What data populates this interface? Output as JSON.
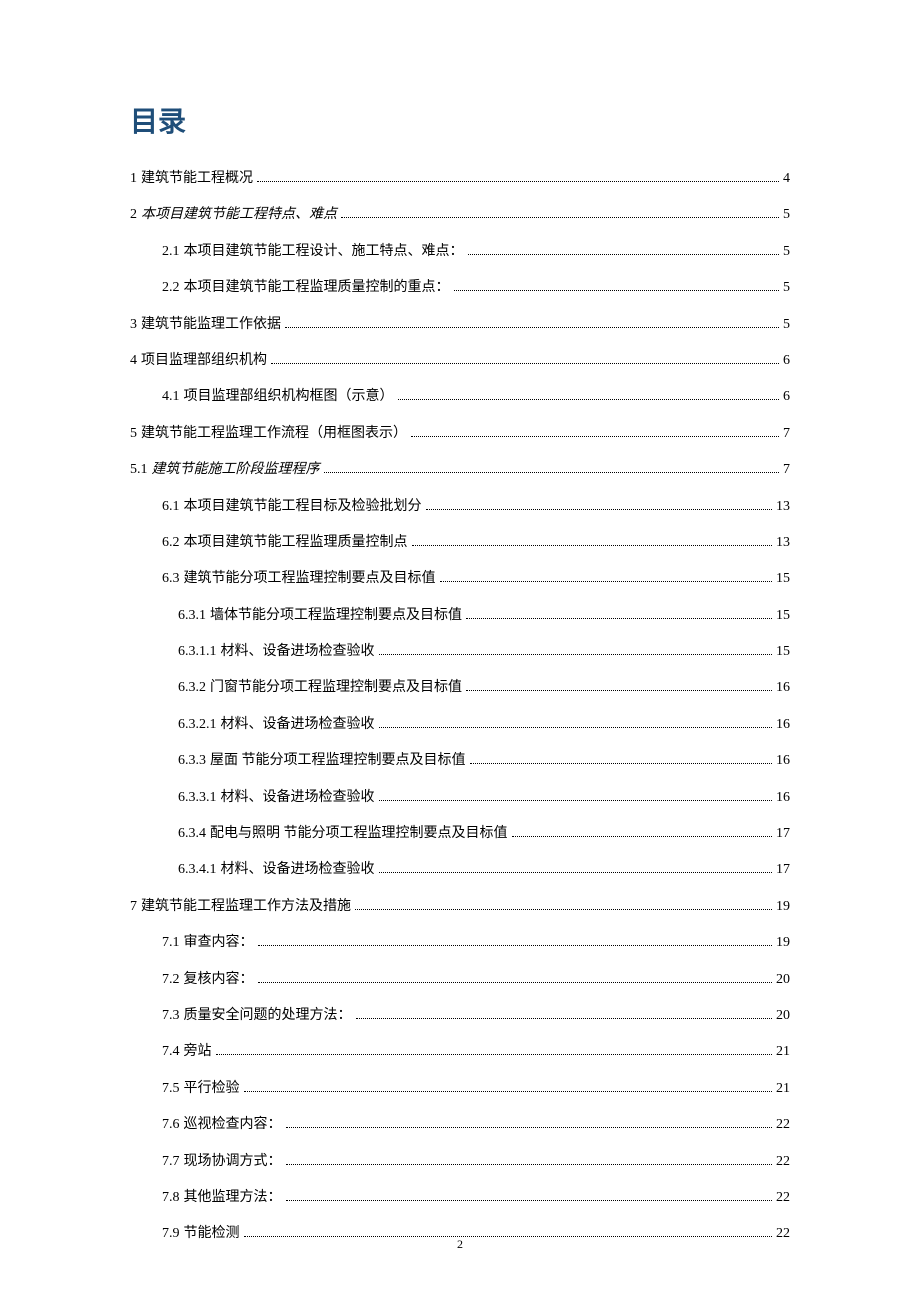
{
  "title": "目录",
  "title_color": "#1f4e79",
  "page_number": "2",
  "entries": [
    {
      "number": "1",
      "label": "建筑节能工程概况",
      "page": "4",
      "level": 0,
      "italic": false
    },
    {
      "number": "2",
      "label": "本项目建筑节能工程特点、难点",
      "page": "5",
      "level": 0,
      "italic": true
    },
    {
      "number": "2.1",
      "label": "本项目建筑节能工程设计、施工特点、难点：",
      "page": "5",
      "level": 1,
      "italic": false
    },
    {
      "number": "2.2",
      "label": "本项目建筑节能工程监理质量控制的重点：",
      "page": "5",
      "level": 1,
      "italic": false
    },
    {
      "number": "3",
      "label": "建筑节能监理工作依据",
      "page": "5",
      "level": 0,
      "italic": false
    },
    {
      "number": "4",
      "label": "项目监理部组织机构",
      "page": "6",
      "level": 0,
      "italic": false
    },
    {
      "number": "4.1",
      "label": "项目监理部组织机构框图（示意）",
      "page": "6",
      "level": 1,
      "italic": false
    },
    {
      "number": "5",
      "label": "建筑节能工程监理工作流程（用框图表示）",
      "page": "7",
      "level": 0,
      "italic": false
    },
    {
      "number": "5.1",
      "label": "建筑节能施工阶段监理程序",
      "page": "7",
      "level": 0,
      "italic": true
    },
    {
      "number": "6.1",
      "label": "本项目建筑节能工程目标及检验批划分",
      "page": "13",
      "level": 1,
      "italic": false
    },
    {
      "number": "6.2",
      "label": "本项目建筑节能工程监理质量控制点",
      "page": "13",
      "level": 1,
      "italic": false
    },
    {
      "number": "6.3",
      "label": "建筑节能分项工程监理控制要点及目标值",
      "page": "15",
      "level": 1,
      "italic": false
    },
    {
      "number": "6.3.1",
      "label": "墙体节能分项工程监理控制要点及目标值",
      "page": "15",
      "level": 2,
      "italic": false
    },
    {
      "number": "6.3.1.1",
      "label": "材料、设备进场检查验收",
      "page": "15",
      "level": 2,
      "italic": false
    },
    {
      "number": "6.3.2",
      "label": "门窗节能分项工程监理控制要点及目标值",
      "page": "16",
      "level": 2,
      "italic": false
    },
    {
      "number": "6.3.2.1",
      "label": "材料、设备进场检查验收",
      "page": "16",
      "level": 2,
      "italic": false
    },
    {
      "number": "6.3.3",
      "label": "屋面 节能分项工程监理控制要点及目标值",
      "page": "16",
      "level": 2,
      "italic": false
    },
    {
      "number": "6.3.3.1",
      "label": "材料、设备进场检查验收",
      "page": "16",
      "level": 2,
      "italic": false
    },
    {
      "number": "6.3.4",
      "label": "配电与照明 节能分项工程监理控制要点及目标值",
      "page": "17",
      "level": 2,
      "italic": false
    },
    {
      "number": "6.3.4.1",
      "label": "材料、设备进场检查验收",
      "page": "17",
      "level": 2,
      "italic": false
    },
    {
      "number": "7",
      "label": "建筑节能工程监理工作方法及措施",
      "page": "19",
      "level": 0,
      "italic": false
    },
    {
      "number": "7.1",
      "label": "审查内容：",
      "page": "19",
      "level": 1,
      "italic": false
    },
    {
      "number": "7.2",
      "label": "复核内容：",
      "page": "20",
      "level": 1,
      "italic": false
    },
    {
      "number": "7.3",
      "label": "质量安全问题的处理方法：",
      "page": "20",
      "level": 1,
      "italic": false
    },
    {
      "number": "7.4",
      "label": "旁站",
      "page": "21",
      "level": 1,
      "italic": false
    },
    {
      "number": "7.5",
      "label": "平行检验",
      "page": "21",
      "level": 1,
      "italic": false
    },
    {
      "number": "7.6",
      "label": "巡视检查内容：",
      "page": "22",
      "level": 1,
      "italic": false
    },
    {
      "number": "7.7",
      "label": "现场协调方式：",
      "page": "22",
      "level": 1,
      "italic": false
    },
    {
      "number": "7.8",
      "label": "其他监理方法：",
      "page": "22",
      "level": 1,
      "italic": false
    },
    {
      "number": "7.9",
      "label": "节能检测",
      "page": "22",
      "level": 1,
      "italic": false
    }
  ]
}
